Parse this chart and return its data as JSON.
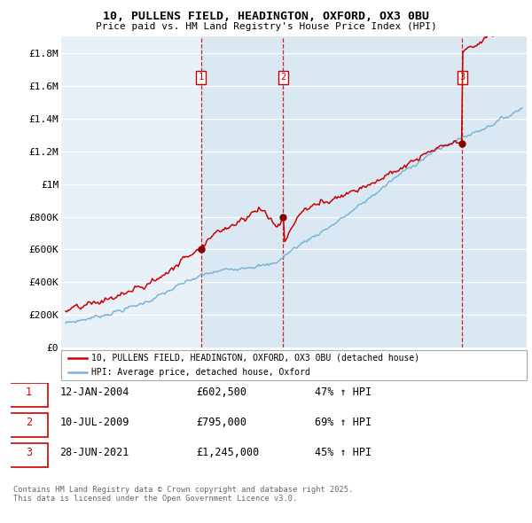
{
  "title_line1": "10, PULLENS FIELD, HEADINGTON, OXFORD, OX3 0BU",
  "title_line2": "Price paid vs. HM Land Registry's House Price Index (HPI)",
  "ylim": [
    0,
    1900000
  ],
  "yticks": [
    0,
    200000,
    400000,
    600000,
    800000,
    1000000,
    1200000,
    1400000,
    1600000,
    1800000
  ],
  "ytick_labels": [
    "£0",
    "£200K",
    "£400K",
    "£600K",
    "£800K",
    "£1M",
    "£1.2M",
    "£1.4M",
    "£1.6M",
    "£1.8M"
  ],
  "xlim_start": 1994.7,
  "xlim_end": 2025.8,
  "xticks": [
    1995,
    1996,
    1997,
    1998,
    1999,
    2000,
    2001,
    2002,
    2003,
    2004,
    2005,
    2006,
    2007,
    2008,
    2009,
    2010,
    2011,
    2012,
    2013,
    2014,
    2015,
    2016,
    2017,
    2018,
    2019,
    2020,
    2021,
    2022,
    2023,
    2024,
    2025
  ],
  "sale_dates": [
    2004.04,
    2009.53,
    2021.49
  ],
  "sale_prices": [
    602500,
    795000,
    1245000
  ],
  "sale_labels": [
    "1",
    "2",
    "3"
  ],
  "vline_color": "#cc0000",
  "highlight_bg": "#dae8f4",
  "legend_line1": "10, PULLENS FIELD, HEADINGTON, OXFORD, OX3 0BU (detached house)",
  "legend_line2": "HPI: Average price, detached house, Oxford",
  "table_rows": [
    [
      "1",
      "12-JAN-2004",
      "£602,500",
      "47% ↑ HPI"
    ],
    [
      "2",
      "10-JUL-2009",
      "£795,000",
      "69% ↑ HPI"
    ],
    [
      "3",
      "28-JUN-2021",
      "£1,245,000",
      "45% ↑ HPI"
    ]
  ],
  "footer": "Contains HM Land Registry data © Crown copyright and database right 2025.\nThis data is licensed under the Open Government Licence v3.0.",
  "property_line_color": "#cc0000",
  "hpi_line_color": "#7ab4d8",
  "chart_bg": "#e8f0f8"
}
